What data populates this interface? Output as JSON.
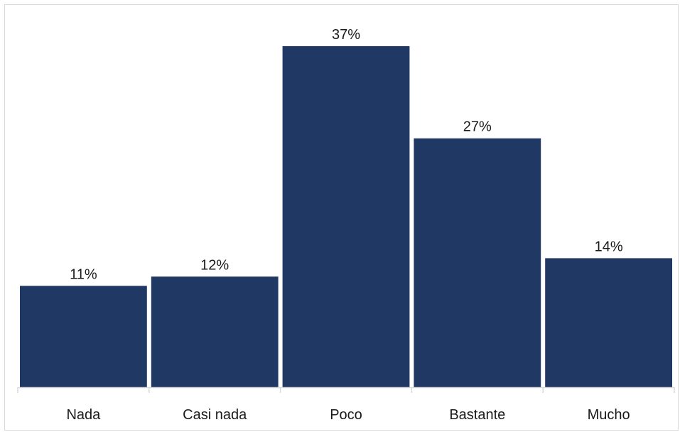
{
  "chart_data": {
    "type": "bar",
    "categories": [
      "Nada",
      "Casi nada",
      "Poco",
      "Bastante",
      "Mucho"
    ],
    "values": [
      11,
      12,
      37,
      27,
      14
    ],
    "value_labels": [
      "11%",
      "12%",
      "37%",
      "27%",
      "14%"
    ],
    "ylim": [
      0,
      37
    ],
    "grid": false,
    "legend": "none",
    "colors": {
      "bar": "#203864",
      "axis": "#d9d9d9",
      "text": "#1a1a1a"
    }
  }
}
